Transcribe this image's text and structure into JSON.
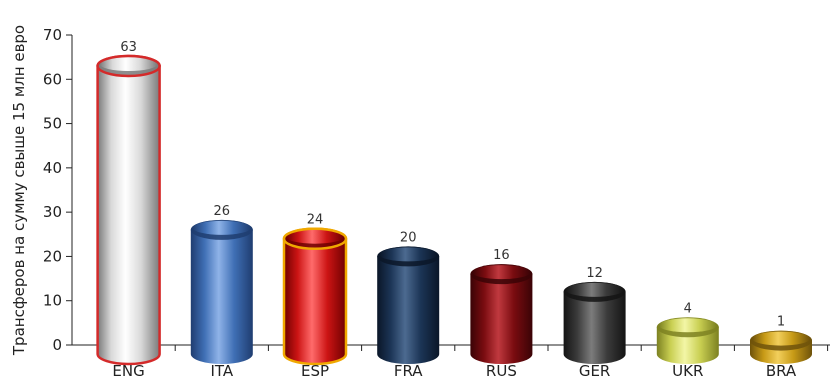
{
  "chart_data": {
    "type": "bar",
    "ylabel": "Трансферов на сумму свыше 15 млн евро",
    "xlabel": "",
    "ylim": [
      0,
      70
    ],
    "yticks": [
      0,
      10,
      20,
      30,
      40,
      50,
      60,
      70
    ],
    "grid": false,
    "categories": [
      "ENG",
      "ITA",
      "ESP",
      "FRA",
      "RUS",
      "GER",
      "UKR",
      "BRA"
    ],
    "values": [
      63,
      26,
      24,
      20,
      16,
      12,
      4,
      1
    ],
    "colors": {
      "ENG": {
        "base": "#d9d9d9",
        "light": "#ffffff",
        "dark": "#7a7a7a",
        "outline": "#d42a2a"
      },
      "ITA": {
        "base": "#3f6fb5",
        "light": "#8fb3e8",
        "dark": "#1f3d70",
        "outline": ""
      },
      "ESP": {
        "base": "#cc1414",
        "light": "#ff6b6b",
        "dark": "#6e0000",
        "outline": "#f0a800"
      },
      "FRA": {
        "base": "#1c3556",
        "light": "#4c6a90",
        "dark": "#0a1628",
        "outline": ""
      },
      "RUS": {
        "base": "#7a0c10",
        "light": "#c0393f",
        "dark": "#3a0306",
        "outline": ""
      },
      "GER": {
        "base": "#3b3b3b",
        "light": "#7c7c7c",
        "dark": "#141414",
        "outline": ""
      },
      "UKR": {
        "base": "#c9cf52",
        "light": "#f3f6a6",
        "dark": "#7c8121",
        "outline": ""
      },
      "BRA": {
        "base": "#c79a16",
        "light": "#f2cf5c",
        "dark": "#6e520a",
        "outline": ""
      }
    }
  }
}
